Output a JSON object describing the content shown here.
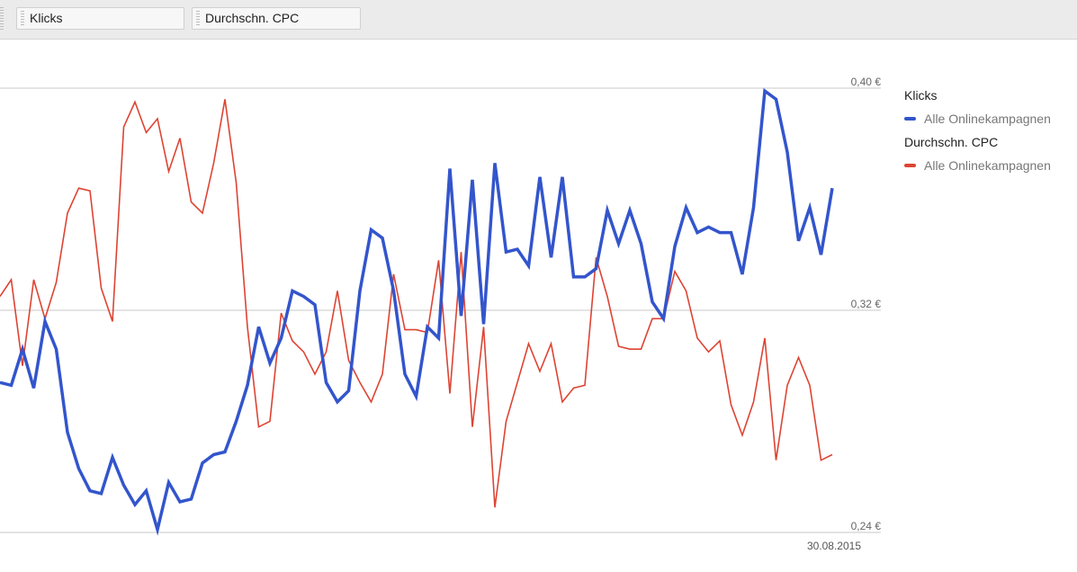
{
  "toolbar": {
    "metric1": "Klicks",
    "metric2": "Durchschn. CPC"
  },
  "legend": {
    "group1": "Klicks",
    "item1": "Alle Onlinekampagnen",
    "group2": "Durchschn. CPC",
    "item2": "Alle Onlinekampagnen"
  },
  "colors": {
    "blue": "#3355cc",
    "red": "#dd4433",
    "grid": "#d4d4d4"
  },
  "chart_data": {
    "type": "line",
    "x_end_label": "30.08.2015",
    "y_ticks": [
      "0,40 €",
      "0,32 €",
      "0,24 €"
    ],
    "ylim": [
      0.24,
      0.4
    ],
    "grid": true,
    "legend_position": "right",
    "series": [
      {
        "name": "Klicks",
        "axis": "left_unlabeled",
        "color": "#3355cc",
        "values": [
          0.294,
          0.293,
          0.306,
          0.292,
          0.316,
          0.306,
          0.276,
          0.263,
          0.255,
          0.254,
          0.267,
          0.257,
          0.25,
          0.255,
          0.241,
          0.258,
          0.251,
          0.252,
          0.265,
          0.268,
          0.269,
          0.28,
          0.293,
          0.314,
          0.301,
          0.31,
          0.327,
          0.325,
          0.322,
          0.294,
          0.287,
          0.291,
          0.327,
          0.349,
          0.346,
          0.327,
          0.297,
          0.289,
          0.314,
          0.31,
          0.371,
          0.318,
          0.367,
          0.315,
          0.373,
          0.341,
          0.342,
          0.336,
          0.368,
          0.339,
          0.368,
          0.332,
          0.332,
          0.335,
          0.356,
          0.344,
          0.356,
          0.344,
          0.323,
          0.317,
          0.343,
          0.357,
          0.348,
          0.35,
          0.348,
          0.348,
          0.333,
          0.357,
          0.399,
          0.396,
          0.377,
          0.345,
          0.357,
          0.34,
          0.364
        ]
      },
      {
        "name": "Durchschn. CPC",
        "axis": "right",
        "color": "#dd4433",
        "values": [
          0.325,
          0.331,
          0.3,
          0.331,
          0.317,
          0.33,
          0.355,
          0.364,
          0.363,
          0.328,
          0.316,
          0.386,
          0.395,
          0.384,
          0.389,
          0.37,
          0.382,
          0.359,
          0.355,
          0.373,
          0.396,
          0.366,
          0.314,
          0.278,
          0.28,
          0.319,
          0.309,
          0.305,
          0.297,
          0.305,
          0.327,
          0.302,
          0.294,
          0.287,
          0.297,
          0.333,
          0.313,
          0.313,
          0.312,
          0.338,
          0.29,
          0.341,
          0.278,
          0.314,
          0.249,
          0.28,
          0.294,
          0.308,
          0.298,
          0.308,
          0.287,
          0.292,
          0.293,
          0.339,
          0.325,
          0.307,
          0.306,
          0.306,
          0.317,
          0.317,
          0.334,
          0.327,
          0.31,
          0.305,
          0.309,
          0.286,
          0.275,
          0.287,
          0.31,
          0.266,
          0.293,
          0.303,
          0.293,
          0.266,
          0.268
        ]
      }
    ]
  }
}
